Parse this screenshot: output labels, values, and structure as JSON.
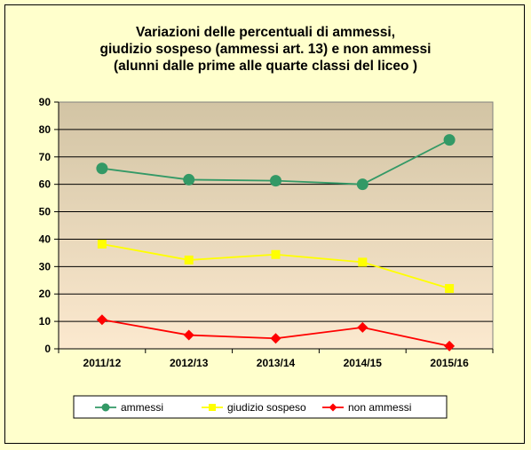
{
  "chart_data": {
    "type": "line",
    "title_lines": [
      "Variazioni delle percentuali di ammessi,",
      "giudizio sospeso (ammessi art. 13) e non ammessi",
      "(alunni dalle prime alle quarte classi del liceo )"
    ],
    "categories": [
      "2011/12",
      "2012/13",
      "2013/14",
      "2014/15",
      "2015/16"
    ],
    "ylim": [
      0,
      90
    ],
    "yticks": [
      0,
      10,
      20,
      30,
      40,
      50,
      60,
      70,
      80,
      90
    ],
    "grid": true,
    "legend_position": "bottom",
    "series": [
      {
        "name": "ammessi",
        "values": [
          65.8,
          61.7,
          61.3,
          60.0,
          76.2
        ],
        "color": "#339966",
        "marker": "circle"
      },
      {
        "name": "giudizio  sospeso",
        "values": [
          38.2,
          32.4,
          34.4,
          31.6,
          22.0
        ],
        "color": "#ffff00",
        "marker": "square"
      },
      {
        "name": "non ammessi",
        "values": [
          10.6,
          5.0,
          3.8,
          7.8,
          1.0
        ],
        "color": "#ff0000",
        "marker": "diamond"
      }
    ],
    "background_gradient": [
      "#d2c4a4",
      "#fce9cf"
    ]
  }
}
